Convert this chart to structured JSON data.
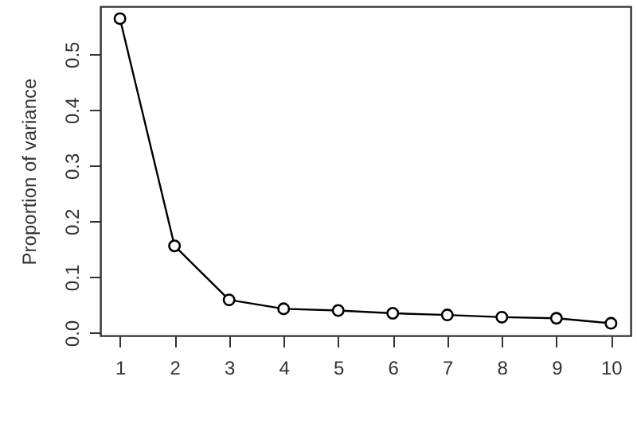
{
  "chart_data": {
    "type": "line",
    "ylabel": "Proportion of variance",
    "x": [
      1,
      2,
      3,
      4,
      5,
      6,
      7,
      8,
      9,
      10
    ],
    "series": [
      {
        "color": "#000000",
        "values": [
          0.564,
          0.156,
          0.059,
          0.043,
          0.04,
          0.035,
          0.032,
          0.028,
          0.026,
          0.017
        ]
      }
    ],
    "xlim": [
      0.64,
      10.36
    ],
    "ylim": [
      -0.005,
      0.586
    ],
    "xticks": [
      1,
      2,
      3,
      4,
      5,
      6,
      7,
      8,
      9,
      10
    ],
    "yticks": [
      {
        "value": 0,
        "label": "0.0"
      },
      0.1,
      0.2,
      0.3,
      0.4,
      0.5
    ],
    "marker": "circle",
    "line_style": "solid",
    "grid": false
  }
}
